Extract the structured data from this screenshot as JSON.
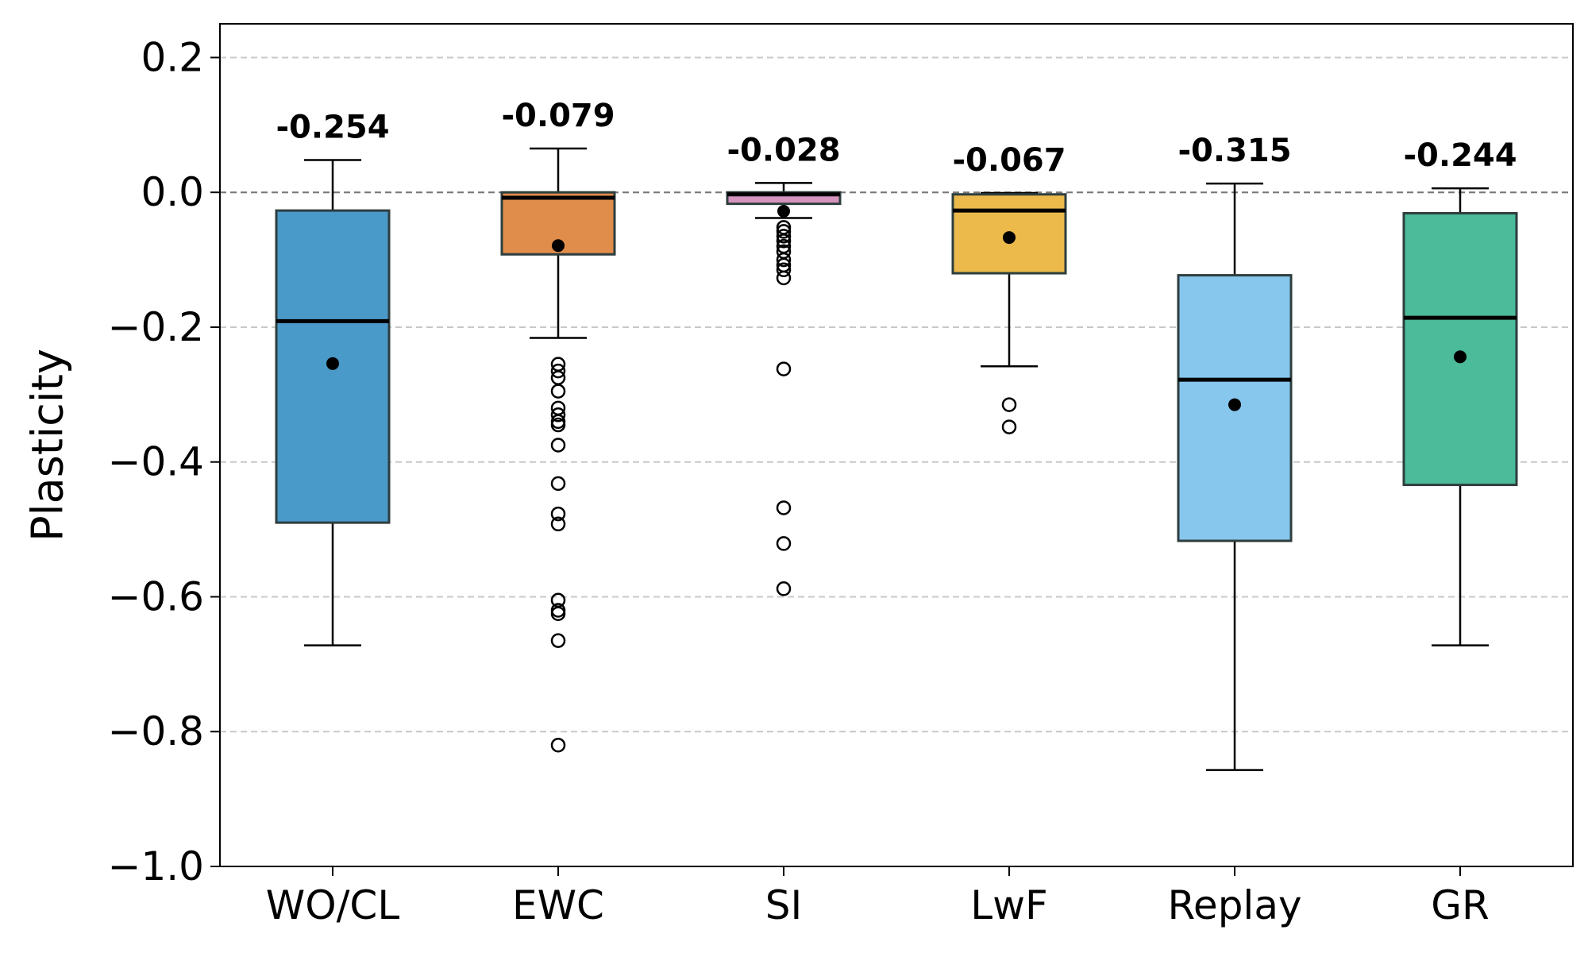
{
  "chart_data": {
    "type": "box",
    "title": "",
    "xlabel": "",
    "ylabel": "Plasticity",
    "ylim": [
      -1.0,
      0.25
    ],
    "yticks": [
      0.2,
      0.0,
      -0.2,
      -0.4,
      -0.6,
      -0.8,
      -1.0
    ],
    "ytick_labels": [
      "0.2",
      "0.0",
      "−0.2",
      "−0.4",
      "−0.6",
      "−0.8",
      "−1.0"
    ],
    "grid": "horizontal-dashed",
    "reference_line": 0.0,
    "categories": [
      "WO/CL",
      "EWC",
      "SI",
      "LwF",
      "Replay",
      "GR"
    ],
    "boxes": [
      {
        "category": "WO/CL",
        "whisker_low": -0.672,
        "q1": -0.49,
        "median": -0.191,
        "q3": -0.027,
        "whisker_high": 0.048,
        "mean": -0.254,
        "mean_label": "-0.254",
        "outliers": [],
        "color": "#4a9ac9"
      },
      {
        "category": "EWC",
        "whisker_low": -0.216,
        "q1": -0.092,
        "median": -0.008,
        "q3": 0.0,
        "whisker_high": 0.065,
        "mean": -0.079,
        "mean_label": "-0.079",
        "outliers": [
          -0.255,
          -0.265,
          -0.275,
          -0.295,
          -0.32,
          -0.33,
          -0.34,
          -0.345,
          -0.375,
          -0.432,
          -0.477,
          -0.492,
          -0.605,
          -0.62,
          -0.625,
          -0.665,
          -0.82
        ],
        "color": "#e08c4a"
      },
      {
        "category": "SI",
        "whisker_low": -0.038,
        "q1": -0.017,
        "median": -0.003,
        "q3": 0.0,
        "whisker_high": 0.014,
        "mean": -0.028,
        "mean_label": "-0.028",
        "outliers": [
          -0.052,
          -0.058,
          -0.065,
          -0.072,
          -0.08,
          -0.088,
          -0.1,
          -0.108,
          -0.115,
          -0.127,
          -0.262,
          -0.468,
          -0.521,
          -0.588
        ],
        "color": "#d494bd"
      },
      {
        "category": "LwF",
        "whisker_low": -0.258,
        "q1": -0.12,
        "median": -0.027,
        "q3": -0.003,
        "whisker_high": -0.001,
        "mean": -0.067,
        "mean_label": "-0.067",
        "outliers": [
          -0.315,
          -0.348
        ],
        "color": "#ecb94b"
      },
      {
        "category": "Replay",
        "whisker_low": -0.857,
        "q1": -0.517,
        "median": -0.278,
        "q3": -0.123,
        "whisker_high": 0.013,
        "mean": -0.315,
        "mean_label": "-0.315",
        "outliers": [],
        "color": "#87c7ee"
      },
      {
        "category": "GR",
        "whisker_low": -0.672,
        "q1": -0.434,
        "median": -0.186,
        "q3": -0.031,
        "whisker_high": 0.006,
        "mean": -0.244,
        "mean_label": "-0.244",
        "outliers": [],
        "color": "#4bbb99"
      }
    ]
  }
}
